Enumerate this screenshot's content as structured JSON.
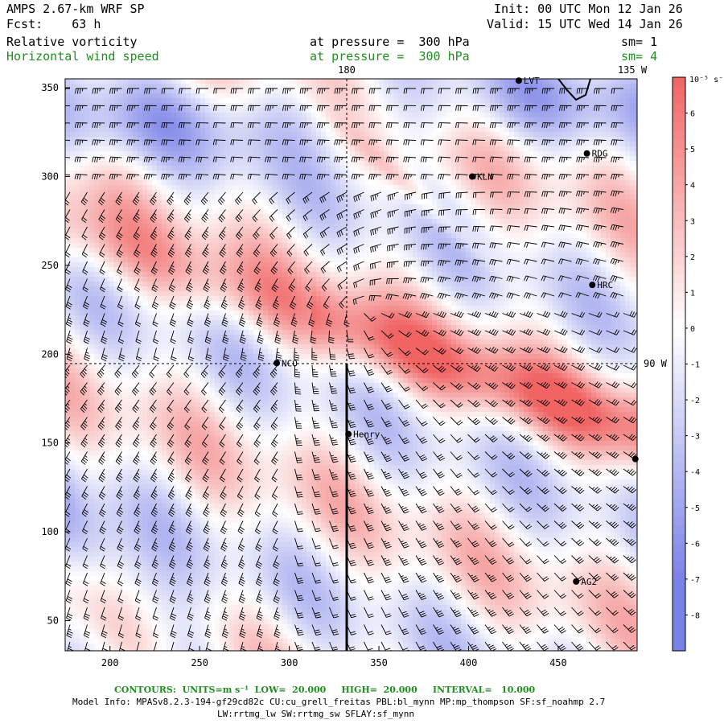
{
  "header": {
    "model_title": "AMPS 2.67-km WRF SP",
    "forecast": "Fcst:    63 h",
    "init": "Init: 00 UTC Mon 12 Jan 26",
    "valid": "Valid: 15 UTC Wed 14 Jan 26"
  },
  "fields": [
    {
      "name": "Relative vorticity",
      "level": "at pressure =  300 hPa",
      "smoothing": "sm= 1",
      "color": "#000000"
    },
    {
      "name": "Horizontal wind speed",
      "level": "at pressure =  300 hPa",
      "smoothing": "sm= 4",
      "color": "#1f8f1f"
    }
  ],
  "map": {
    "meridian_labels": [
      "180",
      "135 W",
      "90 W"
    ],
    "x_ticks": [
      200,
      250,
      300,
      350,
      400,
      450
    ],
    "y_ticks": [
      50,
      100,
      150,
      200,
      250,
      300,
      350
    ],
    "x_range": [
      175,
      494
    ],
    "y_range": [
      33,
      355
    ],
    "stations": [
      {
        "name": "LVT",
        "x": 428,
        "y": 354
      },
      {
        "name": "RDG",
        "x": 466,
        "y": 313
      },
      {
        "name": "KLN",
        "x": 402,
        "y": 300
      },
      {
        "name": "HRC",
        "x": 469,
        "y": 239
      },
      {
        "name": "NCO",
        "x": 293,
        "y": 195
      },
      {
        "name": "Henry",
        "x": 333,
        "y": 155
      },
      {
        "name": "AG2",
        "x": 460,
        "y": 72
      },
      {
        "name": "",
        "x": 493,
        "y": 141
      }
    ]
  },
  "colorbar": {
    "unit": "10⁻⁵ s⁻¹",
    "labels": [
      "6",
      "5",
      "4",
      "3",
      "2",
      "1",
      "0",
      "-1",
      "-2",
      "-3",
      "-4",
      "-5",
      "-6",
      "-7",
      "-8"
    ],
    "values": [
      6,
      5,
      4,
      3,
      2,
      1,
      0,
      -1,
      -2,
      -3,
      -4,
      -5,
      -6,
      -7,
      -8
    ],
    "positive_color": "#7b82e6",
    "negative_color": "#f06464"
  },
  "footer": {
    "contours": "CONTOURS:  UNITS=m s⁻¹  LOW=  20.000     HIGH=  20.000     INTERVAL=   10.000",
    "model_info": "Model Info: MPASv8.2.3-194-gf29cd82c CU:cu_grell_freitas PBL:bl_mynn MP:mp_thompson SF:sf_noahmp 2.7",
    "model_info2": "LW:rrtmg_lw SW:rrtmg_sw SFLAY:sf_mynn"
  }
}
